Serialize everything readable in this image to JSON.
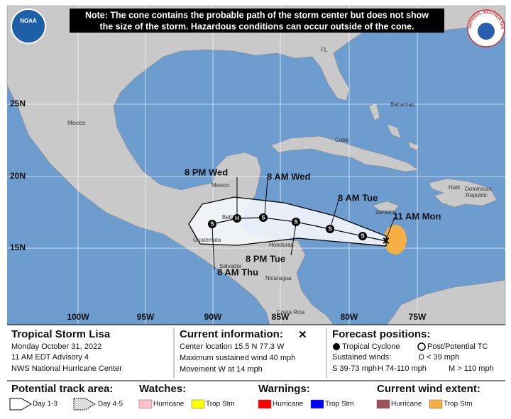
{
  "note_lines": [
    "Note: The cone contains the probable path of the storm center but does not show",
    "the size of the storm. Hazardous conditions can occur outside of the cone."
  ],
  "logos": {
    "noaa": "NOAA",
    "nws": "NATIONAL WEATHER SERVICE"
  },
  "grid_labels": {
    "lat": [
      "25N",
      "20N",
      "15N"
    ],
    "lon": [
      "100W",
      "95W",
      "90W",
      "85W",
      "80W",
      "75W"
    ]
  },
  "places": [
    "FL",
    "Bahamas",
    "Mexico",
    "Cuba",
    "Mexico",
    "Haiti",
    "Dominican",
    "Republic",
    "Jamaica",
    "Belize",
    "Guatemala",
    "Honduras",
    "Salvador",
    "Nicaragua",
    "Costa Rica"
  ],
  "forecast_labels": [
    "8 PM Wed",
    "8 AM Wed",
    "8 AM Tue",
    "11 AM Mon",
    "8 PM Tue",
    "8 AM Thu"
  ],
  "markers": [
    "S",
    "S",
    "S",
    "S",
    "H",
    "S"
  ],
  "info": {
    "title": "Tropical Storm Lisa",
    "date": "Monday October 31, 2022",
    "advisory": "11 AM EDT Advisory 4",
    "center": "NWS National Hurricane Center"
  },
  "current": {
    "heading": "Current information:",
    "symbol": "✕",
    "lines": [
      "Center location 15.5 N 77.3 W",
      "Maximum sustained wind 40 mph",
      "Movement W at 14 mph"
    ]
  },
  "forecast": {
    "heading": "Forecast positions:",
    "tropical": "Tropical Cyclone",
    "post": "Post/Potential TC",
    "winds": "Sustained winds:",
    "d": "D < 39 mph",
    "s": "S 39-73 mph",
    "h": "H 74-110 mph",
    "m": "M > 110 mph"
  },
  "legend": {
    "track": {
      "heading": "Potential track area:",
      "day13": "Day 1-3",
      "day45": "Day 4-5"
    },
    "watches": {
      "heading": "Watches:",
      "hurricane": "Hurricane",
      "trop": "Trop Stm"
    },
    "warnings": {
      "heading": "Warnings:",
      "hurricane": "Hurricane",
      "trop": "Trop Stm"
    },
    "wind": {
      "heading": "Current wind extent:",
      "hurricane": "Hurricane",
      "trop": "Trop Stm"
    }
  }
}
